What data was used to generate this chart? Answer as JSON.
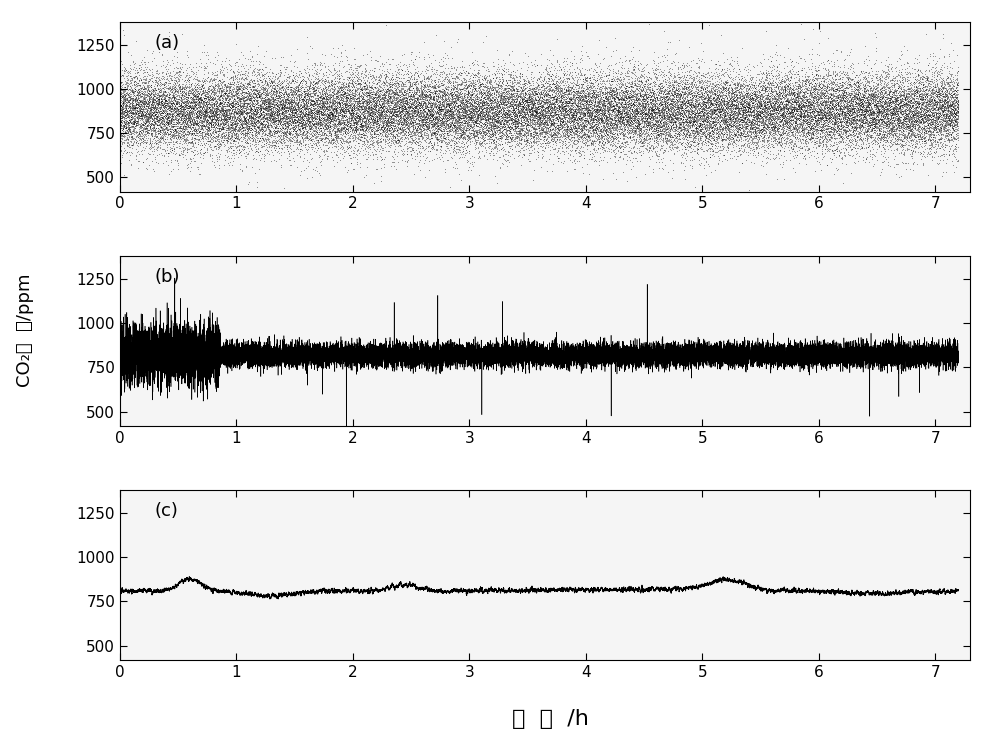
{
  "xlim": [
    0,
    7.3
  ],
  "ylim": [
    420,
    1380
  ],
  "yticks": [
    500,
    750,
    1000,
    1250
  ],
  "xticks": [
    0,
    1,
    2,
    3,
    4,
    5,
    6,
    7
  ],
  "xlabel": "时  间  /h",
  "ylabel": "CO₂浓  度/ppm",
  "panel_labels": [
    "(a)",
    "(b)",
    "(c)"
  ],
  "base_mean_a": 870,
  "noise_a_std": 110,
  "base_mean_b": 820,
  "noise_b_std": 35,
  "base_mean_c": 810,
  "n_points_a": 50000,
  "n_points_b": 20000,
  "n_points_c": 20000,
  "bg_color": "#ffffff",
  "line_color": "#000000",
  "dot_size_a": 0.15,
  "dot_size_b": 0.2,
  "label_fontsize": 13,
  "tick_fontsize": 11,
  "panel_label_fontsize": 13
}
